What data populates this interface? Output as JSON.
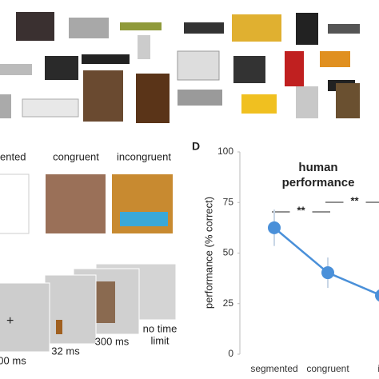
{
  "panel_c": {
    "conditions": [
      "ented",
      "congruent",
      "incongruent"
    ],
    "sequence": {
      "fixation": "+",
      "durations": [
        "00 ms",
        "32 ms",
        "300 ms"
      ],
      "response_lines": [
        "no time",
        "limit"
      ]
    }
  },
  "chart_data": {
    "type": "line",
    "panel_label": "D",
    "title": [
      "human",
      "performance"
    ],
    "ylabel": "performance (% correct)",
    "categories": [
      "segmented",
      "congruent",
      "in"
    ],
    "values": [
      62.5,
      40.3,
      29
    ],
    "errors": [
      9,
      7.5,
      6
    ],
    "color": "#4a90d9",
    "annotations": [
      "**",
      "**"
    ],
    "ylim": [
      0,
      100
    ],
    "yticks": [
      0,
      25,
      50,
      75,
      100
    ]
  }
}
